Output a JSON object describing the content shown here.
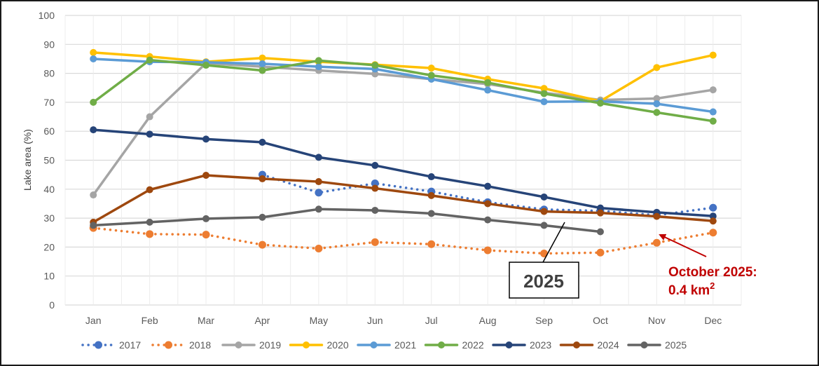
{
  "chart_data": {
    "type": "line",
    "title": "",
    "xlabel": "",
    "ylabel": "Lake area (%)",
    "ylim": [
      0,
      100
    ],
    "yticks": [
      0,
      10,
      20,
      30,
      40,
      50,
      60,
      70,
      80,
      90,
      100
    ],
    "grid": true,
    "legend_position": "bottom",
    "categories": [
      "Jan",
      "Feb",
      "Mar",
      "Apr",
      "May",
      "Jun",
      "Jul",
      "Aug",
      "Sep",
      "Oct",
      "Nov",
      "Dec"
    ],
    "series": [
      {
        "name": "2017",
        "color": "#4472c4",
        "style": "dotted",
        "values": [
          null,
          null,
          null,
          45.0,
          38.8,
          42.0,
          39.2,
          35.5,
          33.0,
          32.5,
          31.0,
          33.6
        ]
      },
      {
        "name": "2018",
        "color": "#ed7d31",
        "style": "dotted",
        "values": [
          26.6,
          24.5,
          24.3,
          20.8,
          19.5,
          21.7,
          21.0,
          18.9,
          17.8,
          18.1,
          21.5,
          25.0
        ]
      },
      {
        "name": "2019",
        "color": "#a5a5a5",
        "style": "solid",
        "values": [
          38.0,
          65.0,
          83.5,
          82.3,
          81.0,
          79.8,
          78.0,
          76.3,
          73.3,
          70.8,
          71.3,
          74.3
        ]
      },
      {
        "name": "2020",
        "color": "#ffc000",
        "style": "solid",
        "values": [
          87.2,
          85.8,
          84.0,
          85.3,
          84.0,
          83.0,
          81.8,
          78.0,
          74.8,
          70.4,
          82.0,
          86.3
        ]
      },
      {
        "name": "2021",
        "color": "#5b9bd5",
        "style": "solid",
        "values": [
          85.0,
          84.0,
          83.8,
          83.3,
          82.3,
          81.5,
          78.0,
          74.2,
          70.2,
          70.3,
          69.5,
          66.7
        ]
      },
      {
        "name": "2022",
        "color": "#70ad47",
        "style": "solid",
        "values": [
          70.0,
          84.6,
          82.8,
          81.0,
          84.4,
          82.8,
          79.3,
          76.8,
          73.0,
          69.7,
          66.5,
          63.5
        ]
      },
      {
        "name": "2023",
        "color": "#264478",
        "style": "solid",
        "values": [
          60.5,
          59.0,
          57.3,
          56.2,
          51.0,
          48.2,
          44.3,
          41.0,
          37.3,
          33.5,
          32.0,
          30.7
        ]
      },
      {
        "name": "2024",
        "color": "#9e480e",
        "style": "solid",
        "values": [
          28.6,
          39.8,
          44.8,
          43.6,
          42.6,
          40.3,
          37.8,
          35.0,
          32.3,
          31.8,
          30.6,
          29.0
        ]
      },
      {
        "name": "2025",
        "color": "#636363",
        "style": "solid",
        "values": [
          27.5,
          28.6,
          29.8,
          30.3,
          33.1,
          32.7,
          31.6,
          29.4,
          27.5,
          25.3,
          null,
          null
        ]
      }
    ],
    "annotations": [
      {
        "text": "2025",
        "type": "callout-box",
        "target_series": "2025"
      },
      {
        "lines": [
          "October 2025:",
          "0.4 km"
        ],
        "superscript": "2",
        "color": "#c00000",
        "target_series": "2025",
        "target_category": "Oct"
      }
    ]
  }
}
